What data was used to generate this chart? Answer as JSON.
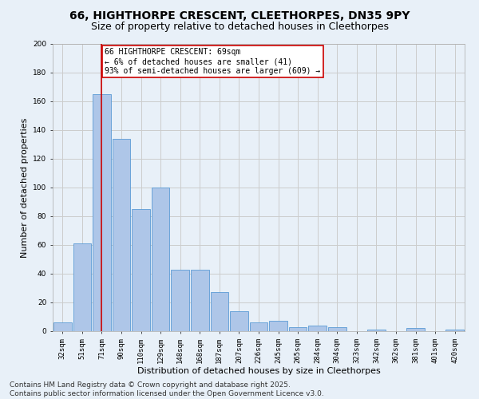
{
  "title_line1": "66, HIGHTHORPE CRESCENT, CLEETHORPES, DN35 9PY",
  "title_line2": "Size of property relative to detached houses in Cleethorpes",
  "xlabel": "Distribution of detached houses by size in Cleethorpes",
  "ylabel": "Number of detached properties",
  "categories": [
    "32sqm",
    "51sqm",
    "71sqm",
    "90sqm",
    "110sqm",
    "129sqm",
    "148sqm",
    "168sqm",
    "187sqm",
    "207sqm",
    "226sqm",
    "245sqm",
    "265sqm",
    "284sqm",
    "304sqm",
    "323sqm",
    "342sqm",
    "362sqm",
    "381sqm",
    "401sqm",
    "420sqm"
  ],
  "values": [
    6,
    61,
    165,
    134,
    85,
    100,
    43,
    43,
    27,
    14,
    6,
    7,
    3,
    4,
    3,
    0,
    1,
    0,
    2,
    0,
    1
  ],
  "bar_color": "#aec6e8",
  "bar_edge_color": "#5b9bd5",
  "highlight_bar_index": 2,
  "highlight_line_color": "#cc0000",
  "annotation_text": "66 HIGHTHORPE CRESCENT: 69sqm\n← 6% of detached houses are smaller (41)\n93% of semi-detached houses are larger (609) →",
  "annotation_box_color": "#cc0000",
  "annotation_box_facecolor": "white",
  "ylim": [
    0,
    200
  ],
  "yticks": [
    0,
    20,
    40,
    60,
    80,
    100,
    120,
    140,
    160,
    180,
    200
  ],
  "grid_color": "#cccccc",
  "background_color": "#e8f0f8",
  "footer_text": "Contains HM Land Registry data © Crown copyright and database right 2025.\nContains public sector information licensed under the Open Government Licence v3.0.",
  "title_fontsize": 10,
  "subtitle_fontsize": 9,
  "axis_label_fontsize": 8,
  "tick_fontsize": 6.5,
  "annotation_fontsize": 7,
  "footer_fontsize": 6.5
}
